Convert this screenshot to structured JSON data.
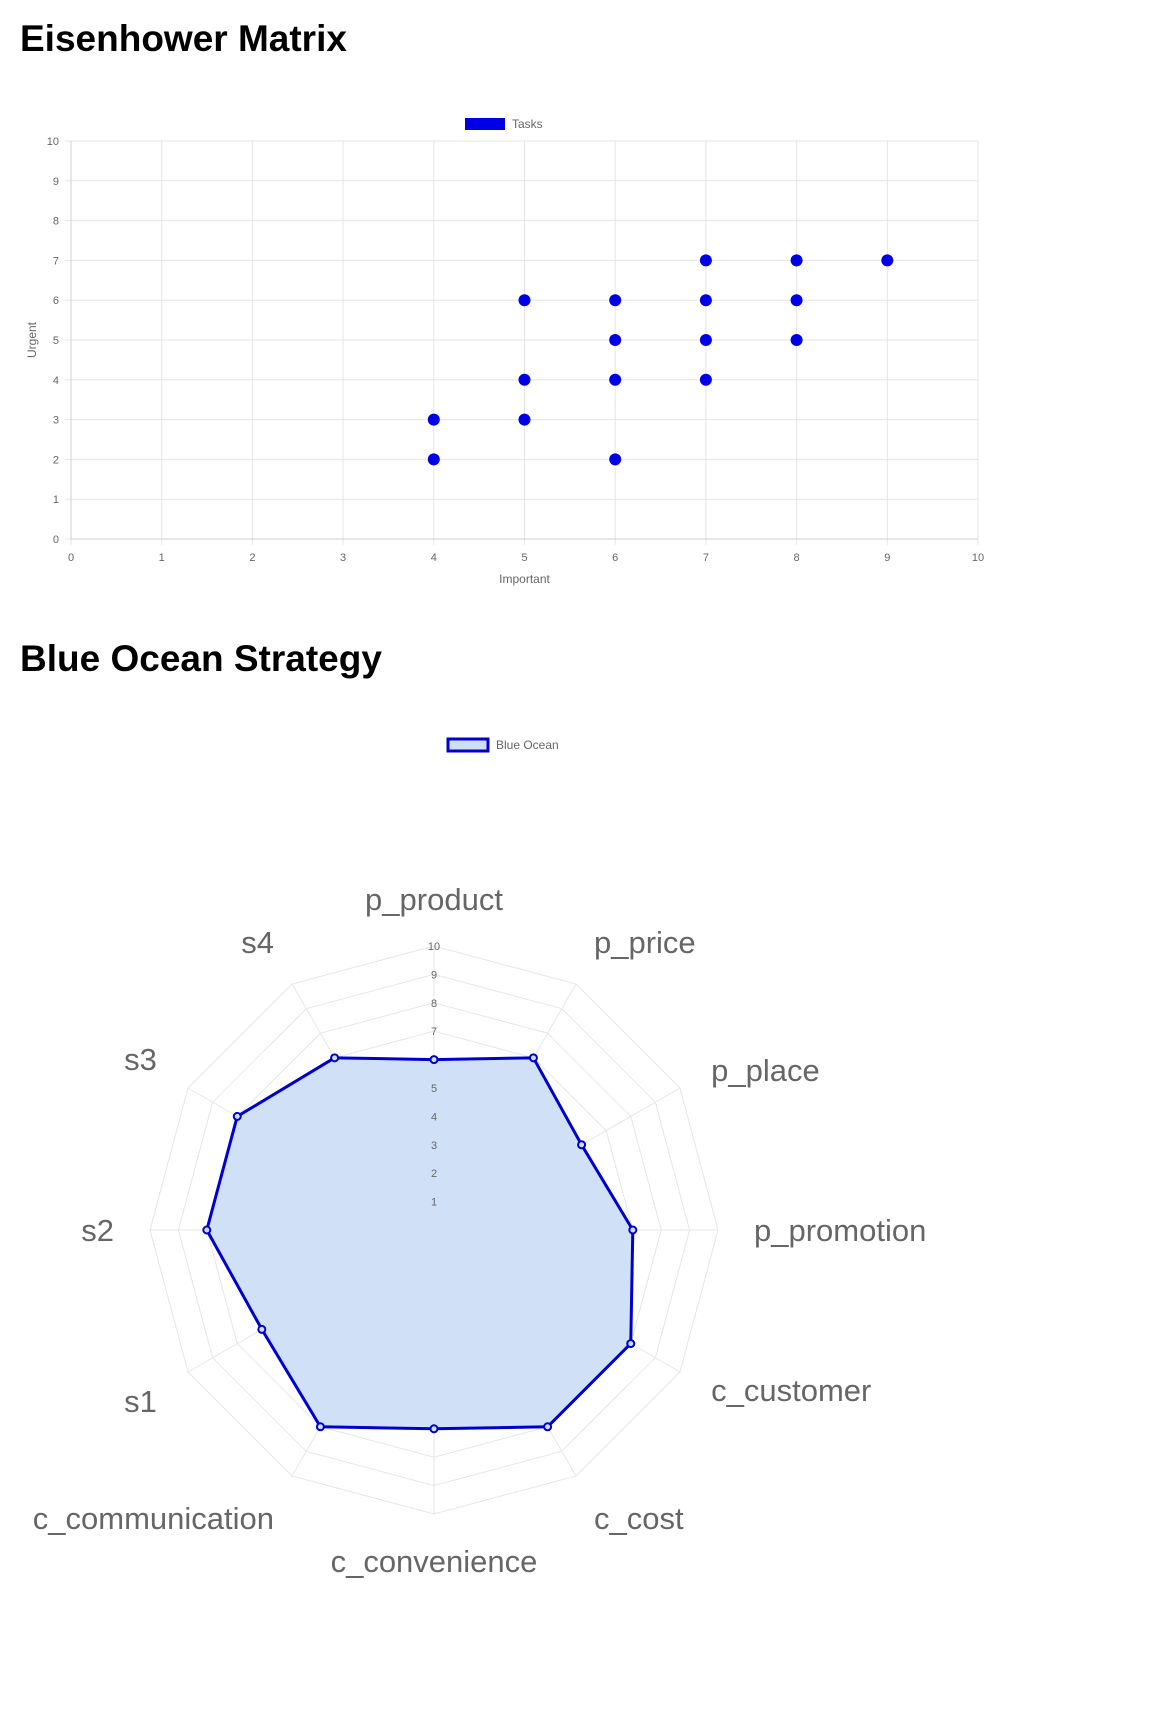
{
  "page": {
    "titles": [
      "Eisenhower Matrix",
      "Blue Ocean Strategy"
    ]
  },
  "chart_data": [
    {
      "type": "scatter",
      "title": "Eisenhower Matrix",
      "xlabel": "Important",
      "ylabel": "Urgent",
      "xlim": [
        0,
        10
      ],
      "ylim": [
        0,
        10
      ],
      "xticks": [
        "0",
        "1",
        "2",
        "3",
        "4",
        "5",
        "6",
        "7",
        "8",
        "9",
        "10"
      ],
      "yticks": [
        "0",
        "1",
        "2",
        "3",
        "4",
        "5",
        "6",
        "7",
        "8",
        "9",
        "10"
      ],
      "grid": true,
      "legend_position": "top",
      "series": [
        {
          "name": "Tasks",
          "color": "#0000e6",
          "points": [
            {
              "x": 4,
              "y": 2
            },
            {
              "x": 4,
              "y": 3
            },
            {
              "x": 5,
              "y": 3
            },
            {
              "x": 5,
              "y": 4
            },
            {
              "x": 5,
              "y": 6
            },
            {
              "x": 6,
              "y": 2
            },
            {
              "x": 6,
              "y": 4
            },
            {
              "x": 6,
              "y": 5
            },
            {
              "x": 6,
              "y": 6
            },
            {
              "x": 7,
              "y": 4
            },
            {
              "x": 7,
              "y": 5
            },
            {
              "x": 7,
              "y": 6
            },
            {
              "x": 7,
              "y": 7
            },
            {
              "x": 8,
              "y": 5
            },
            {
              "x": 8,
              "y": 6
            },
            {
              "x": 8,
              "y": 7
            },
            {
              "x": 9,
              "y": 7
            }
          ]
        }
      ]
    },
    {
      "type": "radar",
      "title": "Blue Ocean Strategy",
      "rlim": [
        0,
        10
      ],
      "rticks": [
        "1",
        "2",
        "3",
        "4",
        "5",
        "6",
        "7",
        "8",
        "9",
        "10"
      ],
      "grid": true,
      "legend_position": "top",
      "categories": [
        "p_product",
        "p_price",
        "p_place",
        "p_promotion",
        "c_customer",
        "c_cost",
        "c_convenience",
        "c_communication",
        "s1",
        "s2",
        "s3",
        "s4"
      ],
      "series": [
        {
          "name": "Blue Ocean",
          "border_color": "#0000cc",
          "fill_color": "#cddff7",
          "values": [
            6,
            7,
            6,
            7,
            8,
            8,
            7,
            8,
            7,
            8,
            8,
            7
          ]
        }
      ]
    }
  ]
}
